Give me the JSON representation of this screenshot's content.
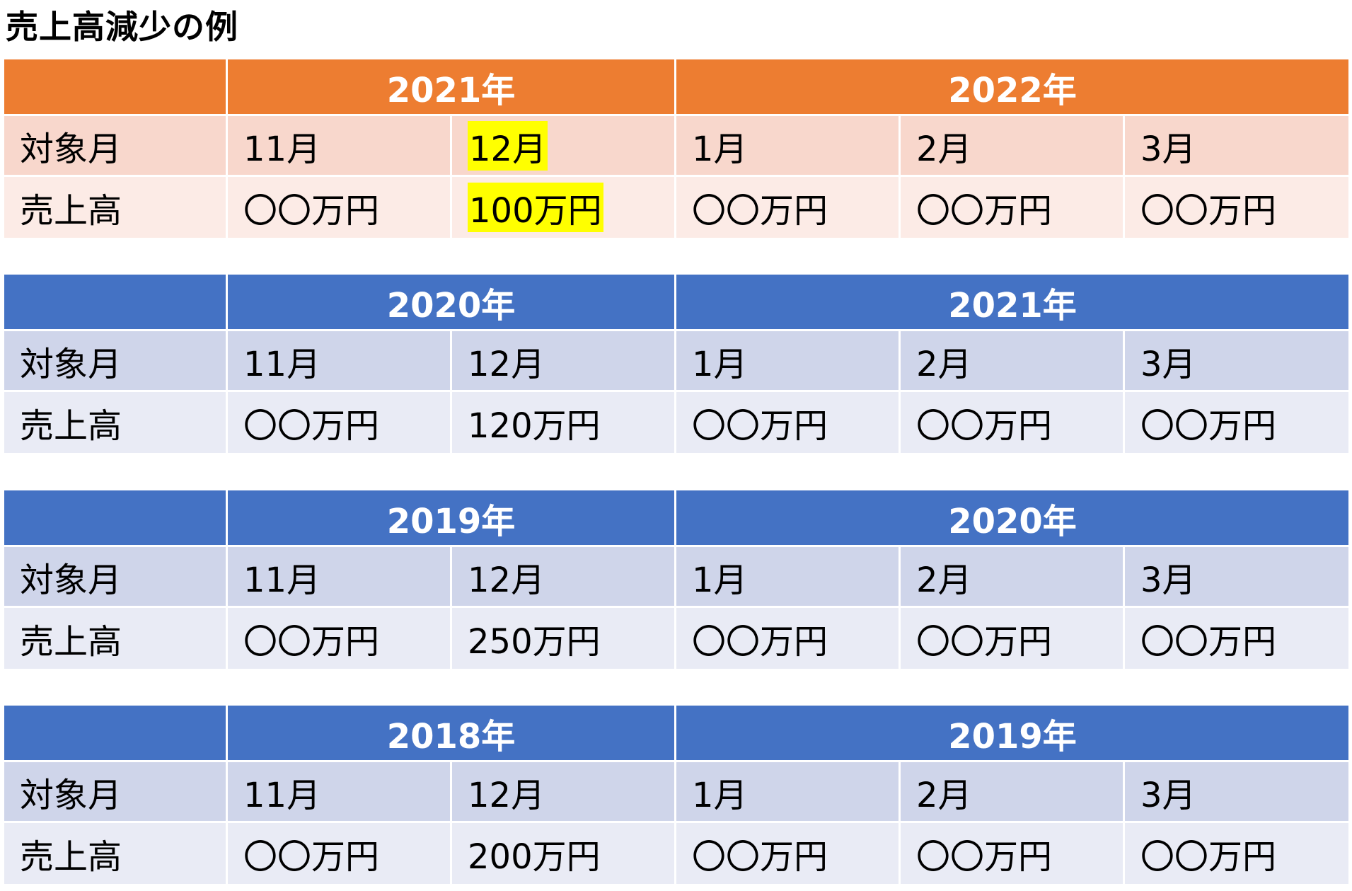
{
  "title": "売上高減少の例",
  "colors": {
    "orange_header": "#ed7d31",
    "orange_row_a": "#f8d7cc",
    "orange_row_b": "#fcebe6",
    "blue_header": "#4472c4",
    "blue_row_a": "#cfd5ea",
    "blue_row_b": "#e9ebf5",
    "highlight": "#ffff00"
  },
  "tables": [
    {
      "theme": "orange",
      "year1": "2021年",
      "year2": "2022年",
      "month_label": "対象月",
      "sales_label": "売上高",
      "months": [
        "11月",
        "12月",
        "1月",
        "2月",
        "3月"
      ],
      "sales": [
        "〇〇万円",
        "100万円",
        "〇〇万円",
        "〇〇万円",
        "〇〇万円"
      ],
      "highlighted_column": 1
    },
    {
      "theme": "blue",
      "year1": "2020年",
      "year2": "2021年",
      "month_label": "対象月",
      "sales_label": "売上高",
      "months": [
        "11月",
        "12月",
        "1月",
        "2月",
        "3月"
      ],
      "sales": [
        "〇〇万円",
        "120万円",
        "〇〇万円",
        "〇〇万円",
        "〇〇万円"
      ]
    },
    {
      "theme": "blue",
      "year1": "2019年",
      "year2": "2020年",
      "month_label": "対象月",
      "sales_label": "売上高",
      "months": [
        "11月",
        "12月",
        "1月",
        "2月",
        "3月"
      ],
      "sales": [
        "〇〇万円",
        "250万円",
        "〇〇万円",
        "〇〇万円",
        "〇〇万円"
      ]
    },
    {
      "theme": "blue",
      "year1": "2018年",
      "year2": "2019年",
      "month_label": "対象月",
      "sales_label": "売上高",
      "months": [
        "11月",
        "12月",
        "1月",
        "2月",
        "3月"
      ],
      "sales": [
        "〇〇万円",
        "200万円",
        "〇〇万円",
        "〇〇万円",
        "〇〇万円"
      ]
    }
  ]
}
